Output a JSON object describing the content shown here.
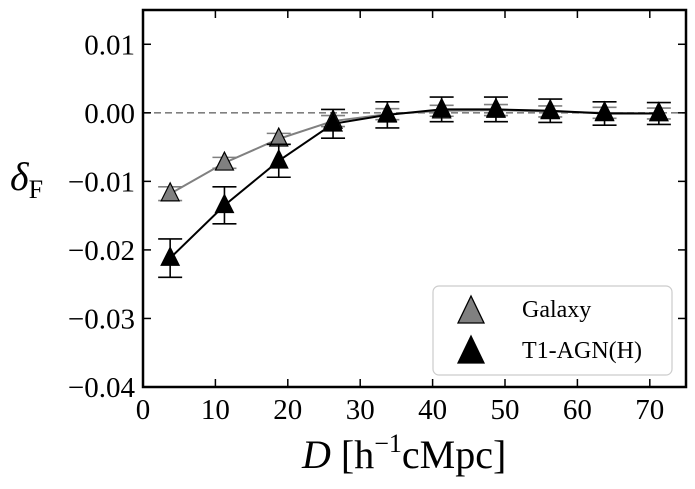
{
  "chart_data": {
    "type": "scatter",
    "title": "",
    "xlabel": {
      "main": "D",
      "unit": "[h",
      "exp": "−1",
      "rest": "cMpc]"
    },
    "ylabel": {
      "main": "δ",
      "sub": "F"
    },
    "xlim": [
      0,
      75
    ],
    "ylim": [
      -0.04,
      0.015
    ],
    "xticks": [
      0,
      10,
      20,
      30,
      40,
      50,
      60,
      70
    ],
    "xtick_labels": [
      "0",
      "10",
      "20",
      "30",
      "40",
      "50",
      "60",
      "70"
    ],
    "yticks": [
      -0.04,
      -0.03,
      -0.02,
      -0.01,
      0.0,
      0.01
    ],
    "ytick_labels": [
      "−0.04",
      "−0.03",
      "−0.02",
      "−0.01",
      "0.00",
      "0.01"
    ],
    "reference_line": {
      "y": 0.0,
      "style": "dashed",
      "color": "#808080"
    },
    "grid": false,
    "legend_position": "bottom-right",
    "series": [
      {
        "name": "Galaxy",
        "color": "#808080",
        "marker": "triangle-up",
        "x": [
          3.75,
          11.25,
          18.75,
          26.25,
          33.75,
          41.25,
          48.75,
          56.25,
          63.75,
          71.25
        ],
        "y": [
          -0.0118,
          -0.0073,
          -0.0038,
          -0.0012,
          -0.0002,
          0.0003,
          0.0004,
          0.0002,
          0.0,
          -0.0001
        ],
        "yerr": [
          0.001,
          0.0008,
          0.0008,
          0.0008,
          0.0008,
          0.0008,
          0.0008,
          0.0008,
          0.0008,
          0.0008
        ]
      },
      {
        "name": "T1-AGN(H)",
        "color": "#000000",
        "marker": "triangle-up",
        "x": [
          3.75,
          11.25,
          18.75,
          26.25,
          33.75,
          41.25,
          48.75,
          56.25,
          63.75,
          71.25
        ],
        "y": [
          -0.0212,
          -0.0135,
          -0.007,
          -0.0016,
          -0.0003,
          0.0005,
          0.0005,
          0.0003,
          -0.0001,
          -0.0001
        ],
        "yerr": [
          0.0028,
          0.0027,
          0.0024,
          0.0021,
          0.0019,
          0.0018,
          0.0018,
          0.0017,
          0.0017,
          0.0016
        ]
      }
    ]
  }
}
